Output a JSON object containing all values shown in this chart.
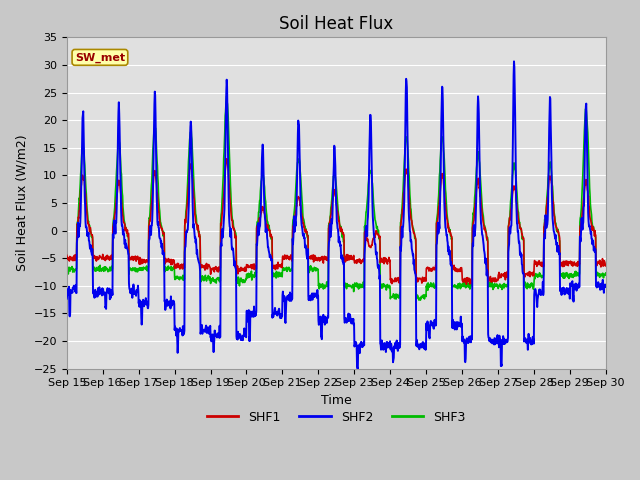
{
  "title": "Soil Heat Flux",
  "ylabel": "Soil Heat Flux (W/m2)",
  "xlabel": "Time",
  "ylim": [
    -25,
    35
  ],
  "yticks": [
    -25,
    -20,
    -15,
    -10,
    -5,
    0,
    5,
    10,
    15,
    20,
    25,
    30,
    35
  ],
  "x_labels": [
    "Sep 15",
    "Sep 16",
    "Sep 17",
    "Sep 18",
    "Sep 19",
    "Sep 20",
    "Sep 21",
    "Sep 22",
    "Sep 23",
    "Sep 24",
    "Sep 25",
    "Sep 26",
    "Sep 27",
    "Sep 28",
    "Sep 29",
    "Sep 30"
  ],
  "colors": {
    "SHF1": "#cc0000",
    "SHF2": "#0000ee",
    "SHF3": "#00bb00"
  },
  "figure_bg": "#c8c8c8",
  "plot_bg": "#e0e0e0",
  "grid_color": "#ffffff",
  "annotation_text": "SW_met",
  "annotation_fg": "#990000",
  "annotation_bg": "#ffffaa",
  "annotation_border": "#aa8800",
  "title_fontsize": 12,
  "label_fontsize": 9,
  "tick_fontsize": 8,
  "legend_fontsize": 9,
  "linewidth_shf1": 1.2,
  "linewidth_shf2": 1.4,
  "linewidth_shf3": 1.2,
  "n_days": 15,
  "n_per_day": 96,
  "shf1_peaks": [
    10,
    9,
    10.5,
    12,
    13,
    4,
    6,
    7,
    -3,
    11,
    10,
    9,
    8,
    10,
    9
  ],
  "shf1_troughs": [
    -5,
    -5,
    -6,
    -7.5,
    -8,
    -6.5,
    -5,
    -5,
    -6,
    -9,
    -7,
    -9,
    -8,
    -6,
    -6
  ],
  "shf1_night": [
    -5,
    -5,
    -5.5,
    -6.5,
    -7,
    -6.5,
    -5,
    -5,
    -5.5,
    -9,
    -7,
    -9,
    -8,
    -6,
    -6
  ],
  "shf2_peaks": [
    22,
    23,
    25,
    20,
    27,
    15,
    21,
    15,
    21,
    28,
    26,
    24,
    30,
    24,
    23
  ],
  "shf2_troughs": [
    -11,
    -11,
    -13,
    -18,
    -19,
    -15,
    -12,
    -16,
    -21,
    -21,
    -17,
    -20,
    -20,
    -11,
    -10
  ],
  "shf3_peaks": [
    15,
    16,
    19,
    18,
    24,
    10,
    13,
    10,
    11,
    17,
    17,
    14,
    12,
    12,
    22
  ],
  "shf3_troughs": [
    -7,
    -7,
    -7,
    -8.5,
    -9,
    -8,
    -7,
    -10,
    -10,
    -12,
    -10,
    -10,
    -10,
    -8,
    -8
  ]
}
